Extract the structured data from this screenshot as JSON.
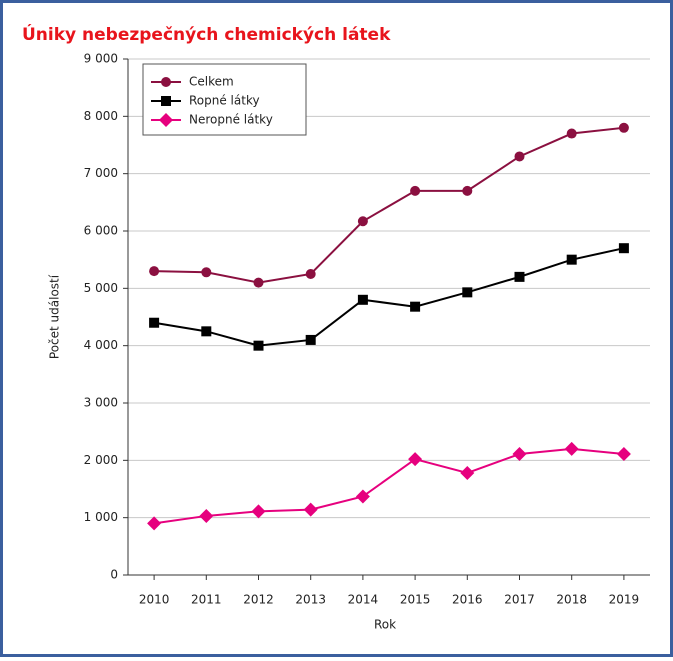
{
  "chart_data": {
    "type": "line",
    "title": "Úniky nebezpečných chemických látek",
    "x_label": "Rok",
    "y_label": "Počet událostí",
    "categories": [
      "2010",
      "2011",
      "2012",
      "2013",
      "2014",
      "2015",
      "2016",
      "2017",
      "2018",
      "2019"
    ],
    "series": [
      {
        "name": "Celkem",
        "color": "#8b1040",
        "marker": "circle",
        "values": [
          5300,
          5280,
          5100,
          5250,
          6170,
          6700,
          6700,
          7300,
          7700,
          7800
        ]
      },
      {
        "name": "Ropné látky",
        "color": "#000000",
        "marker": "square",
        "values": [
          4400,
          4250,
          4000,
          4100,
          4800,
          4680,
          4930,
          5200,
          5500,
          5700
        ]
      },
      {
        "name": "Neropné látky",
        "color": "#e6007e",
        "marker": "diamond",
        "values": [
          900,
          1030,
          1110,
          1140,
          1370,
          2020,
          1780,
          2110,
          2200,
          2110
        ]
      }
    ],
    "ylim": [
      0,
      9000
    ],
    "yticks": [
      0,
      {
        "value": 1000,
        "label": "1 000"
      },
      {
        "value": 2000,
        "label": "2 000"
      },
      {
        "value": 3000,
        "label": "3 000"
      },
      {
        "value": 4000,
        "label": "4 000"
      },
      {
        "value": 5000,
        "label": "5 000"
      },
      {
        "value": 6000,
        "label": "6 000"
      },
      {
        "value": 7000,
        "label": "7 000"
      },
      {
        "value": 8000,
        "label": "8 000"
      },
      {
        "value": 9000,
        "label": "9 000"
      }
    ],
    "grid": true,
    "legend": "upper left"
  }
}
